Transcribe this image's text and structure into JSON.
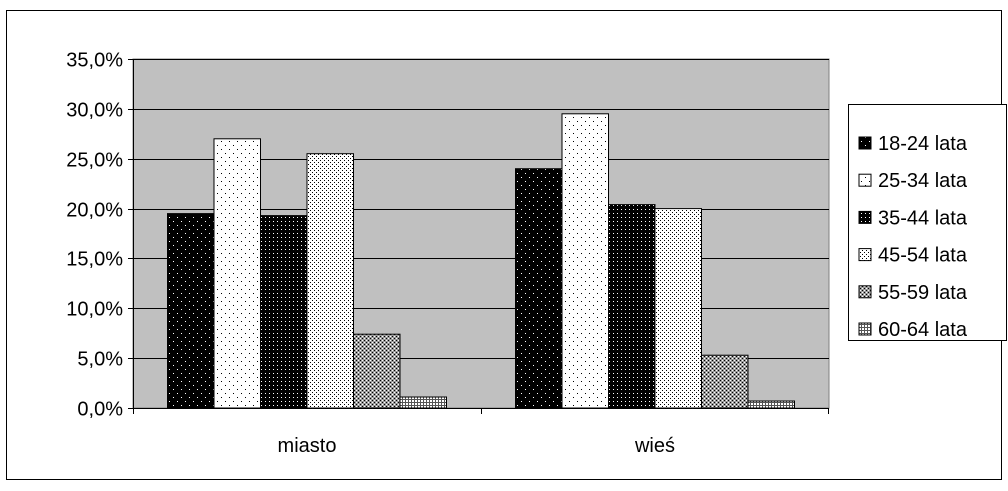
{
  "chart_data": {
    "type": "bar",
    "title": "",
    "xlabel": "",
    "ylabel": "",
    "categories": [
      "miasto",
      "wieś"
    ],
    "ylim": [
      0,
      35
    ],
    "ytick_step": 5,
    "ytick_labels": [
      "0,0%",
      "5,0%",
      "10,0%",
      "15,0%",
      "20,0%",
      "25,0%",
      "30,0%",
      "35,0%"
    ],
    "series": [
      {
        "name": "18-24 lata",
        "values": [
          19.5,
          24.0
        ],
        "pattern": "p18"
      },
      {
        "name": "25-34 lata",
        "values": [
          27.0,
          29.5
        ],
        "pattern": "p25"
      },
      {
        "name": "35-44 lata",
        "values": [
          19.3,
          20.4
        ],
        "pattern": "p35"
      },
      {
        "name": "45-54 lata",
        "values": [
          25.5,
          20.0
        ],
        "pattern": "p45"
      },
      {
        "name": "55-59 lata",
        "values": [
          7.4,
          5.3
        ],
        "pattern": "p55"
      },
      {
        "name": "60-64 lata",
        "values": [
          1.1,
          0.7
        ],
        "pattern": "p60"
      }
    ],
    "grid": true,
    "legend_position": "right",
    "colors": {
      "plot_background": "#C0C0C0",
      "gridline": "#000000",
      "bar_outline": "#000000"
    }
  }
}
